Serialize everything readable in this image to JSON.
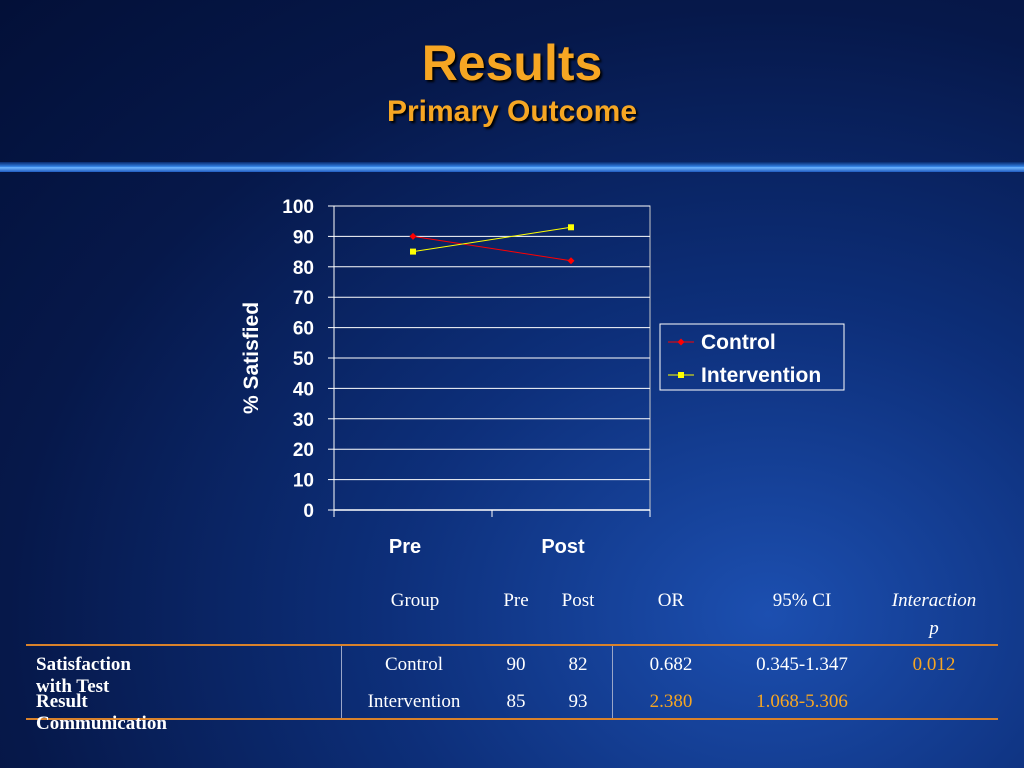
{
  "slide": {
    "title": "Results",
    "subtitle": "Primary Outcome"
  },
  "chart_data": {
    "type": "line",
    "categories": [
      "Pre",
      "Post"
    ],
    "series": [
      {
        "name": "Control",
        "values": [
          90,
          82
        ],
        "color": "#ff0000",
        "marker": "diamond"
      },
      {
        "name": "Intervention",
        "values": [
          85,
          93
        ],
        "color": "#ffff00",
        "marker": "square"
      }
    ],
    "ylabel": "% Satisfied",
    "xlabel": "",
    "ylim": [
      0,
      100
    ],
    "yticks": [
      0,
      10,
      20,
      30,
      40,
      50,
      60,
      70,
      80,
      90,
      100
    ],
    "grid": true,
    "legend": "right"
  },
  "table": {
    "headers": {
      "group": "Group",
      "pre": "Pre",
      "post": "Post",
      "or": "OR",
      "ci": "95% CI",
      "interaction_line1": "Interaction",
      "interaction_line2": "p"
    },
    "row_label_1": "Satisfaction with Test",
    "row_label_2": "Result Communication",
    "rows": [
      {
        "group": "Control",
        "pre": "90",
        "post": "82",
        "or": "0.682",
        "ci": "0.345-1.347",
        "p": "0.012"
      },
      {
        "group": "Intervention",
        "pre": "85",
        "post": "93",
        "or": "2.380",
        "ci": "1.068-5.306",
        "p": ""
      }
    ],
    "highlight_color": "#f6a623"
  }
}
